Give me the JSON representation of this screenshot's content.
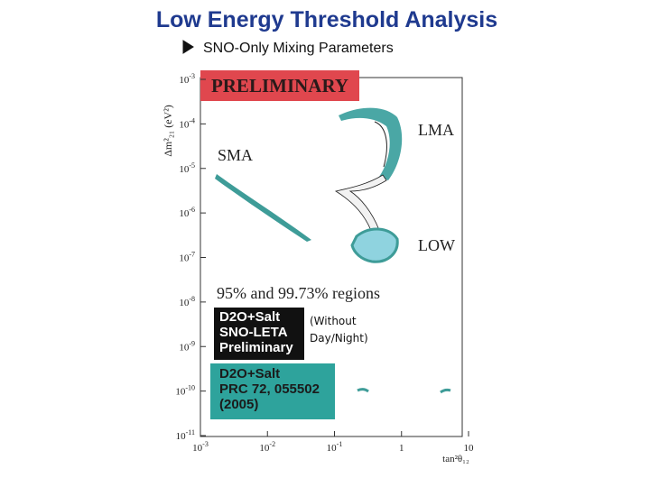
{
  "header": {
    "title": "Low Energy Threshold Analysis",
    "bullet": "SNO-Only Mixing Parameters"
  },
  "figure": {
    "stamp": "PRELIMINARY",
    "y_axis_label": "Δm²₂₁ (eV²)",
    "x_axis_label": "tan²θ₁₂",
    "y_ticks": [
      {
        "base": "10",
        "exp": "-3"
      },
      {
        "base": "10",
        "exp": "-4"
      },
      {
        "base": "10",
        "exp": "-5"
      },
      {
        "base": "10",
        "exp": "-6"
      },
      {
        "base": "10",
        "exp": "-7"
      },
      {
        "base": "10",
        "exp": "-8"
      },
      {
        "base": "10",
        "exp": "-9"
      },
      {
        "base": "10",
        "exp": "-10"
      },
      {
        "base": "10",
        "exp": "-11"
      }
    ],
    "x_ticks": [
      {
        "base": "10",
        "exp": "-3"
      },
      {
        "base": "10",
        "exp": "-2"
      },
      {
        "base": "10",
        "exp": "-1"
      },
      {
        "base": "1"
      },
      {
        "base": "10"
      }
    ],
    "regions": {
      "lma": "LMA",
      "sma": "SMA",
      "low": "LOW"
    },
    "caption": "95% and 99.73% regions",
    "legend_black": [
      "D2O+Salt",
      "SNO-LETA",
      "Preliminary"
    ],
    "legend_teal": [
      "D2O+Salt",
      "PRC 72, 055502",
      "(2005)"
    ],
    "note": [
      "(Without",
      "Day/Night)"
    ]
  }
}
